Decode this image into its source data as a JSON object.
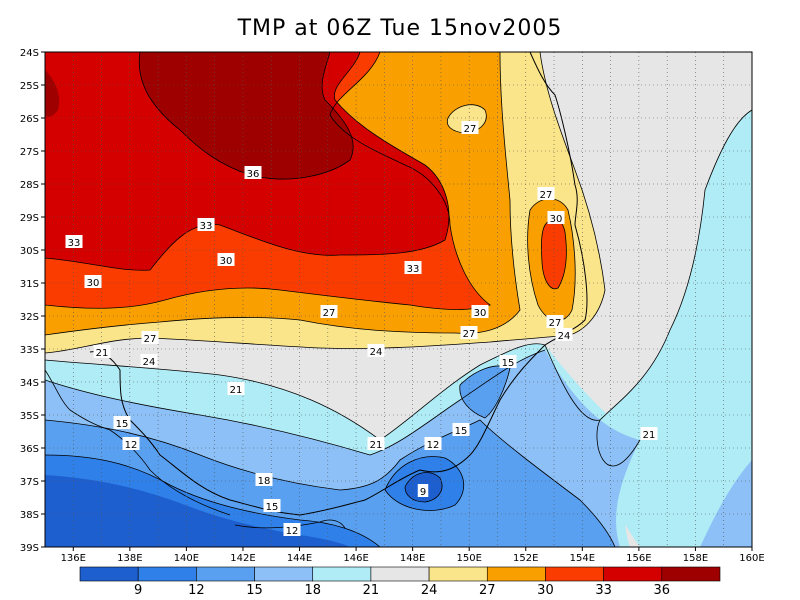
{
  "title": "TMP at 06Z Tue 15nov2005",
  "lat_labels": [
    "24S",
    "25S",
    "26S",
    "27S",
    "28S",
    "29S",
    "30S",
    "31S",
    "32S",
    "33S",
    "34S",
    "35S",
    "36S",
    "37S",
    "38S",
    "39S"
  ],
  "lon_labels": [
    "136E",
    "138E",
    "140E",
    "142E",
    "144E",
    "146E",
    "148E",
    "150E",
    "152E",
    "154E",
    "156E",
    "158E",
    "160E"
  ],
  "colorbar": {
    "colors": [
      "#1e5fd0",
      "#2f80e8",
      "#5aa0f0",
      "#8cc0f6",
      "#b0ecf6",
      "#e6e6e6",
      "#fbe58a",
      "#f9a000",
      "#fa3c00",
      "#d40000",
      "#9e0000"
    ],
    "labels": [
      "9",
      "12",
      "15",
      "18",
      "21",
      "24",
      "27",
      "30",
      "33",
      "36"
    ]
  },
  "contour_labels": [
    "36",
    "33",
    "33",
    "33",
    "30",
    "30",
    "30",
    "30",
    "27",
    "27",
    "27",
    "27",
    "27",
    "27",
    "24",
    "24",
    "24",
    "21",
    "21",
    "21",
    "21",
    "18",
    "15",
    "15",
    "15",
    "15",
    "12",
    "12",
    "12",
    "9"
  ],
  "field_colors": {
    "c9": "#1e5fd0",
    "c12": "#2f80e8",
    "c15": "#5aa0f0",
    "c18": "#8cc0f6",
    "c21": "#b0ecf6",
    "c24": "#e6e6e6",
    "c27": "#fbe58a",
    "c30": "#f9a000",
    "c33": "#fa3c00",
    "c36": "#d40000",
    "c39": "#9e0000"
  }
}
